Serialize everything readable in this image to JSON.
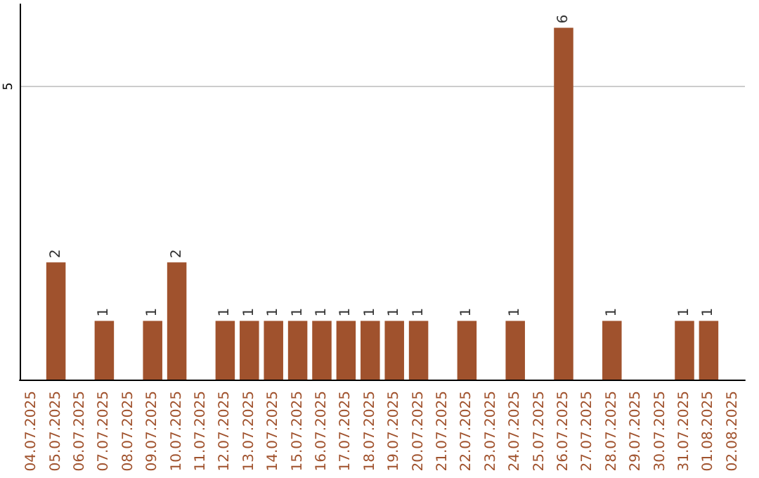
{
  "chart_data": {
    "type": "bar",
    "categories": [
      "04.07.2025",
      "05.07.2025",
      "06.07.2025",
      "07.07.2025",
      "08.07.2025",
      "09.07.2025",
      "10.07.2025",
      "11.07.2025",
      "12.07.2025",
      "13.07.2025",
      "14.07.2025",
      "15.07.2025",
      "16.07.2025",
      "17.07.2025",
      "18.07.2025",
      "19.07.2025",
      "20.07.2025",
      "21.07.2025",
      "22.07.2025",
      "23.07.2025",
      "24.07.2025",
      "25.07.2025",
      "26.07.2025",
      "27.07.2025",
      "28.07.2025",
      "29.07.2025",
      "30.07.2025",
      "31.07.2025",
      "01.08.2025",
      "02.08.2025"
    ],
    "values": [
      0,
      2,
      0,
      1,
      0,
      1,
      2,
      0,
      1,
      1,
      1,
      1,
      1,
      1,
      1,
      1,
      1,
      0,
      1,
      0,
      1,
      0,
      6,
      0,
      1,
      0,
      0,
      1,
      1,
      0
    ],
    "value_labels": [
      null,
      "2",
      null,
      "1",
      null,
      "1",
      "2",
      null,
      "1",
      "1",
      "1",
      "1",
      "1",
      "1",
      "1",
      "1",
      "1",
      null,
      "1",
      null,
      "1",
      null,
      "6",
      null,
      "1",
      null,
      null,
      "1",
      "1",
      null
    ],
    "color": "#a0522d",
    "ylim": [
      0,
      6.4
    ],
    "yticks": [
      5
    ],
    "grid": "y"
  }
}
